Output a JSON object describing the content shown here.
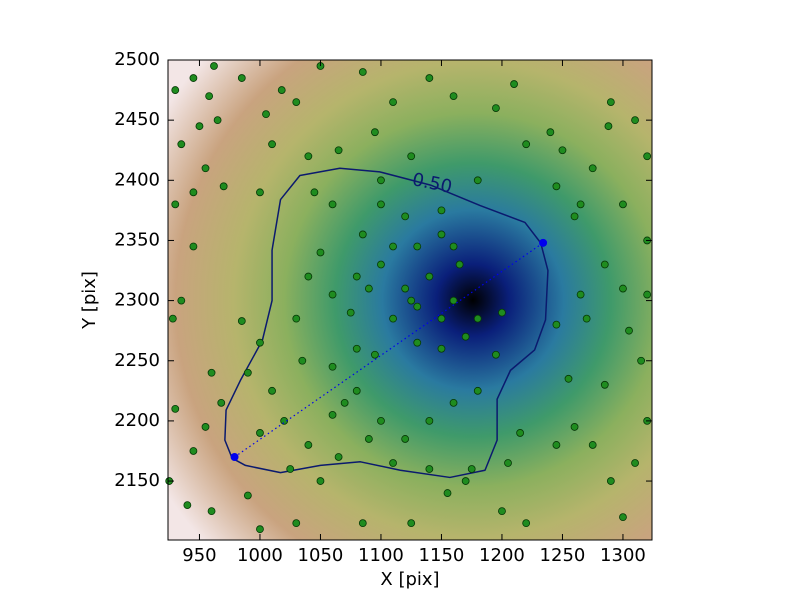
{
  "chart_data": {
    "type": "scatter",
    "xlabel": "X [pix]",
    "ylabel": "Y [pix]",
    "xlim": [
      924,
      1324
    ],
    "ylim": [
      2101,
      2500
    ],
    "xticks": [
      950,
      1000,
      1050,
      1100,
      1150,
      1200,
      1250,
      1300
    ],
    "yticks": [
      2150,
      2200,
      2250,
      2300,
      2350,
      2400,
      2450,
      2500
    ],
    "series": [
      {
        "color": "#1f8c1f",
        "x": [
          930,
          945,
          962,
          958,
          950,
          965,
          985,
          1005,
          1018,
          1030,
          1050,
          1085,
          1110,
          1140,
          1160,
          1195,
          1210,
          1240,
          1290,
          1310,
          1320,
          1275,
          1250,
          1288,
          935,
          955,
          945,
          930,
          970,
          1000,
          1010,
          1040,
          1065,
          1095,
          1125,
          1100,
          1220,
          1245,
          1265,
          1300,
          1320,
          1260,
          945,
          935,
          928,
          985,
          1000,
          1285,
          1300,
          1265,
          1305,
          1315,
          1320,
          960,
          990,
          968,
          955,
          945,
          930,
          925,
          940,
          960,
          990,
          1000,
          1030,
          1050,
          1085,
          1125,
          1155,
          1175,
          1200,
          1220,
          1245,
          1260,
          1275,
          1290,
          1300,
          1310,
          1320,
          1255,
          1285,
          1245,
          1270,
          1125,
          1120,
          1130,
          1110,
          1140,
          1100,
          1090,
          1150,
          1160,
          1170,
          1110,
          1130,
          1150,
          1165,
          1080,
          1075,
          1060,
          1050,
          1040,
          1030,
          1035,
          1060,
          1080,
          1095,
          1130,
          1150,
          1180,
          1200,
          1195,
          1120,
          1100,
          1085,
          1060,
          1045,
          1150,
          1160,
          1180,
          1060,
          1080,
          1100,
          1120,
          1140,
          1160,
          1180,
          1010,
          1020,
          1040,
          1065,
          1090,
          1110,
          1140,
          1170,
          1205,
          1215,
          1025,
          1000,
          1070
        ],
        "y": [
          2475,
          2485,
          2495,
          2470,
          2445,
          2450,
          2485,
          2455,
          2475,
          2465,
          2495,
          2490,
          2465,
          2485,
          2470,
          2460,
          2480,
          2440,
          2465,
          2450,
          2420,
          2410,
          2425,
          2445,
          2430,
          2410,
          2390,
          2380,
          2395,
          2390,
          2430,
          2420,
          2425,
          2440,
          2420,
          2400,
          2430,
          2395,
          2380,
          2380,
          2350,
          2370,
          2345,
          2300,
          2285,
          2283,
          2265,
          2330,
          2310,
          2305,
          2275,
          2250,
          2305,
          2240,
          2240,
          2215,
          2195,
          2175,
          2210,
          2150,
          2130,
          2125,
          2138,
          2110,
          2115,
          2150,
          2115,
          2115,
          2140,
          2160,
          2125,
          2115,
          2180,
          2195,
          2180,
          2150,
          2120,
          2165,
          2200,
          2235,
          2230,
          2280,
          2285,
          2300,
          2310,
          2295,
          2285,
          2320,
          2330,
          2310,
          2285,
          2300,
          2270,
          2345,
          2345,
          2355,
          2330,
          2320,
          2290,
          2305,
          2340,
          2320,
          2285,
          2250,
          2245,
          2260,
          2255,
          2265,
          2260,
          2285,
          2290,
          2255,
          2370,
          2380,
          2355,
          2380,
          2390,
          2375,
          2345,
          2400,
          2205,
          2225,
          2200,
          2185,
          2200,
          2215,
          2225,
          2225,
          2200,
          2180,
          2170,
          2185,
          2165,
          2160,
          2150,
          2165,
          2190,
          2160,
          2190,
          2215
        ]
      }
    ],
    "contour": {
      "label": "0.50",
      "color": "#0b1a6e",
      "x": [
        977,
        971,
        972,
        984,
        1002,
        1010,
        1010,
        1017,
        1033,
        1066,
        1099,
        1141,
        1182,
        1219,
        1232,
        1238,
        1236,
        1227,
        1207,
        1196,
        1196,
        1186,
        1157,
        1116,
        1083,
        1050,
        1017,
        988
      ],
      "y": [
        2169,
        2184,
        2209,
        2234,
        2267,
        2300,
        2342,
        2384,
        2404,
        2410,
        2407,
        2396,
        2379,
        2365,
        2348,
        2325,
        2284,
        2259,
        2242,
        2218,
        2184,
        2159,
        2153,
        2159,
        2166,
        2163,
        2157,
        2163
      ]
    },
    "major_axis": {
      "color": "#0000ee",
      "x": [
        979,
        1234
      ],
      "y": [
        2170,
        2348
      ]
    }
  }
}
